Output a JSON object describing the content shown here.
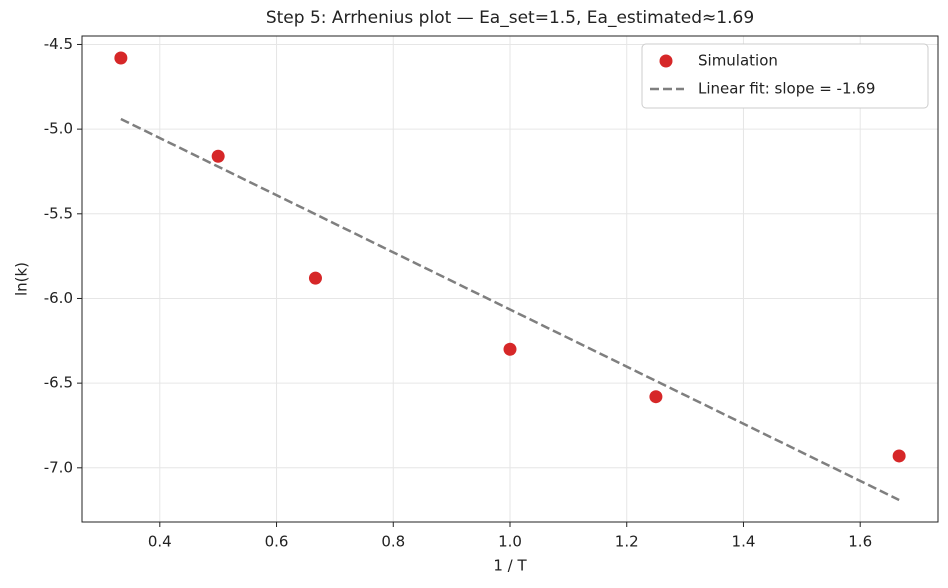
{
  "chart_data": {
    "type": "scatter",
    "title": "Step 5: Arrhenius plot — Ea_set=1.5, Ea_estimated≈1.69",
    "x_label": "1 / T",
    "y_label": "ln(k)",
    "series": [
      {
        "name": "Simulation",
        "color": "#d62728",
        "kind": "scatter",
        "x": [
          0.3333,
          0.5,
          0.6667,
          1.0,
          1.25,
          1.6667
        ],
        "values": [
          -4.58,
          -5.16,
          -5.88,
          -6.3,
          -6.58,
          -6.93
        ]
      },
      {
        "name": "Linear fit: slope = -1.69",
        "color": "#7f7f7f",
        "kind": "line",
        "dashed": true,
        "x": [
          0.3333,
          1.6667
        ],
        "values": [
          -4.94,
          -7.19
        ]
      }
    ],
    "xlim": [
      0.2667,
      1.7333
    ],
    "ylim": [
      -7.32,
      -4.45
    ],
    "xticks": [
      0.4,
      0.6,
      0.8,
      {
        "value": 1,
        "label": "1.0"
      },
      1.2,
      1.4,
      1.6
    ],
    "yticks": [
      -4.5,
      {
        "value": -5,
        "label": "-5.0"
      },
      -5.5,
      {
        "value": -6,
        "label": "-6.0"
      },
      -6.5,
      {
        "value": -7,
        "label": "-7.0"
      }
    ],
    "grid": true,
    "legend": "upper right"
  }
}
